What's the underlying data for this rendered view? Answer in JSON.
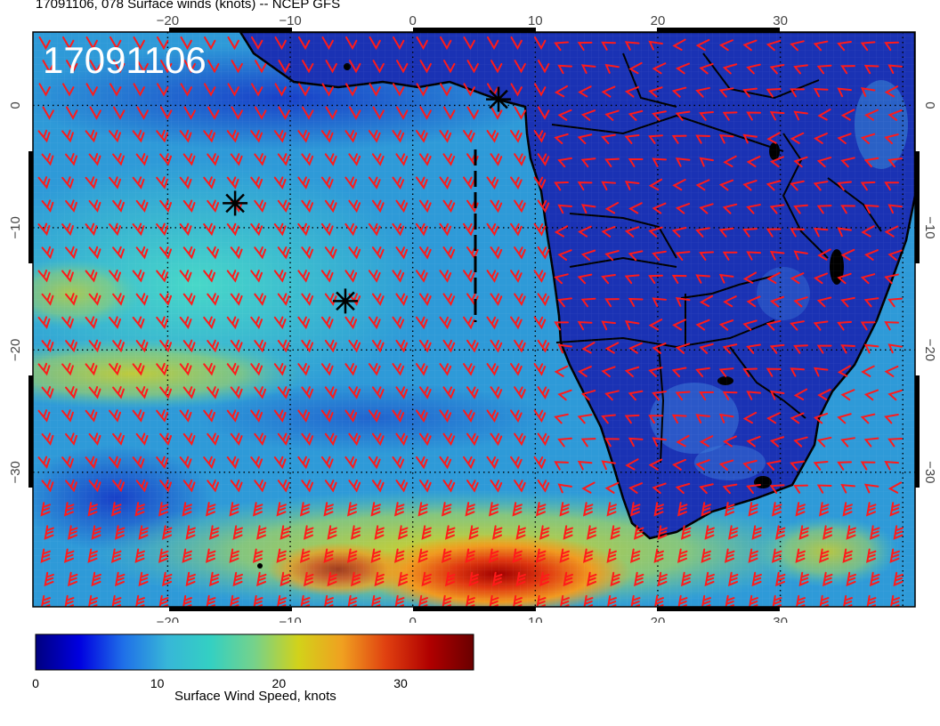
{
  "title": "17091106, 078 Surface winds (knots) -- NCEP GFS",
  "stamp": "17091106",
  "map": {
    "projection": "cylindrical equidistant",
    "lon_range": [
      -31,
      41
    ],
    "lat_range": [
      6,
      -41
    ],
    "lon_ticks": [
      -20,
      -10,
      0,
      10,
      20,
      30
    ],
    "lat_ticks": [
      0,
      -10,
      -20,
      -30
    ],
    "lon_tick_labels": [
      "−20",
      "−10",
      "0",
      "10",
      "20",
      "30"
    ],
    "lat_tick_labels": [
      "0",
      "−10",
      "−20",
      "−30"
    ],
    "grid": "dotted",
    "wind_barb_color": "#ff1a1a",
    "land_color": "#1830b8",
    "markers": [
      {
        "lon": 7,
        "lat": 0.5
      },
      {
        "lon": -14.5,
        "lat": -8
      },
      {
        "lon": -5.5,
        "lat": -16
      }
    ]
  },
  "colorbar": {
    "min": 0,
    "max": 36,
    "tick_values": [
      0,
      10,
      20,
      30
    ],
    "tick_labels": [
      "0",
      "10",
      "20",
      "30"
    ],
    "label": "Surface Wind Speed, knots",
    "stops": [
      "#00007f",
      "#0000e0",
      "#1f6fe8",
      "#37b6d8",
      "#34d0c2",
      "#76d28a",
      "#d2d21a",
      "#f0a020",
      "#e04010",
      "#b00000",
      "#6a0000"
    ]
  }
}
